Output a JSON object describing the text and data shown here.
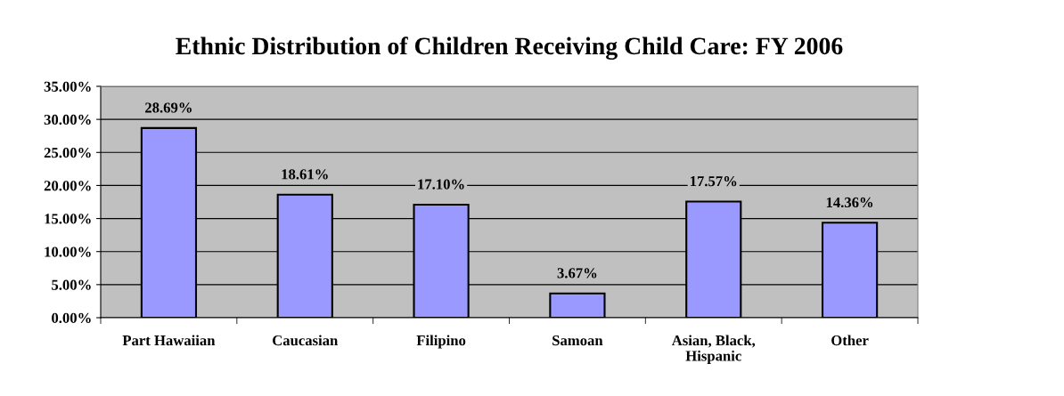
{
  "chart_data": {
    "type": "bar",
    "title": "Ethnic Distribution of Children Receiving Child Care: FY 2006",
    "categories": [
      "Part Hawaiian",
      "Caucasian",
      "Filipino",
      "Samoan",
      "Asian, Black,\nHispanic",
      "Other"
    ],
    "values": [
      28.69,
      18.61,
      17.1,
      3.67,
      17.57,
      14.36
    ],
    "value_labels": [
      "28.69%",
      "18.61%",
      "17.10%",
      "3.67%",
      "17.57%",
      "14.36%"
    ],
    "color": "#9999ff",
    "ylim": [
      0,
      35
    ],
    "yticks": [
      {
        "value": 0,
        "label": "0.00%"
      },
      {
        "value": 5,
        "label": "5.00%"
      },
      {
        "value": 10,
        "label": "10.00%"
      },
      {
        "value": 15,
        "label": "15.00%"
      },
      {
        "value": 20,
        "label": "20.00%"
      },
      {
        "value": 25,
        "label": "25.00%"
      },
      {
        "value": 30,
        "label": "30.00%"
      },
      {
        "value": 35,
        "label": "35.00%"
      }
    ],
    "grid": "y"
  }
}
